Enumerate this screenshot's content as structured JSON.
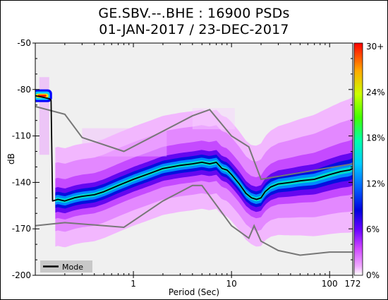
{
  "chart_data": {
    "type": "heatmap",
    "title": "GE.SBV.--.BHE : 16900 PSDs",
    "subtitle": "01-JAN-2017 / 23-DEC-2017",
    "xlabel": "Period (Sec)",
    "ylabel": "dB",
    "x_scale": "log",
    "xlim": [
      0.1,
      172
    ],
    "ylim": [
      -200,
      -50
    ],
    "x_ticks": [
      {
        "value": 1,
        "label": "1"
      },
      {
        "value": 10,
        "label": "10"
      },
      {
        "value": 100,
        "label": "100"
      },
      {
        "value": 172,
        "label": "172"
      }
    ],
    "y_ticks": [
      {
        "value": -50,
        "label": "-50"
      },
      {
        "value": -80,
        "label": "-80"
      },
      {
        "value": -110,
        "label": "-110"
      },
      {
        "value": -140,
        "label": "-140"
      },
      {
        "value": -170,
        "label": "-170"
      },
      {
        "value": -200,
        "label": "-200"
      }
    ],
    "colorbar": {
      "labels": [
        "30+",
        "24%",
        "18%",
        "12%",
        "6%",
        "0%"
      ],
      "colors": [
        "#ff0000",
        "#ff8800",
        "#ffff00",
        "#00ff00",
        "#00ffff",
        "#0066ff",
        "#0000cc",
        "#aa00ff",
        "#ee88ff",
        "#ffffff"
      ]
    },
    "legend": {
      "entry": "Mode",
      "placement": "bottom-left"
    },
    "mode_curve": {
      "x": [
        0.1,
        0.12,
        0.14,
        0.145,
        0.15,
        0.17,
        0.2,
        0.25,
        0.3,
        0.4,
        0.5,
        0.7,
        1.0,
        1.5,
        2.0,
        3.0,
        4.0,
        5.0,
        6.0,
        7.0,
        8.0,
        9.0,
        10.0,
        12.0,
        14.0,
        16.0,
        18.0,
        20.0,
        22.0,
        25.0,
        30.0,
        40.0,
        50.0,
        70.0,
        100.0,
        130.0,
        160.0,
        172.0
      ],
      "y": [
        -84,
        -85,
        -86,
        -87,
        -152,
        -151,
        -152,
        -150,
        -149,
        -148,
        -146,
        -142,
        -138,
        -134,
        -131,
        -129,
        -128,
        -127,
        -128,
        -127,
        -131,
        -132,
        -135,
        -141,
        -147,
        -150,
        -151,
        -150,
        -146,
        -143,
        -141,
        -140,
        -139,
        -138,
        -135,
        -133,
        -132,
        -131
      ]
    },
    "high_noise_model": {
      "x": [
        0.1,
        0.2,
        0.3,
        0.8,
        4.0,
        6.0,
        10.0,
        15.0,
        20.0,
        172.0
      ],
      "y": [
        -91,
        -96,
        -111,
        -120,
        -97,
        -93,
        -110,
        -117,
        -138,
        -128
      ]
    },
    "low_noise_model": {
      "x": [
        0.1,
        0.2,
        0.8,
        2.0,
        4.0,
        5.0,
        10.0,
        15.0,
        17.0,
        20.0,
        30.0,
        50.0,
        100.0,
        172.0
      ],
      "y": [
        -168,
        -166,
        -169,
        -152,
        -142,
        -142,
        -168,
        -176,
        -168,
        -178,
        -184,
        -187,
        -185,
        -185
      ]
    }
  }
}
